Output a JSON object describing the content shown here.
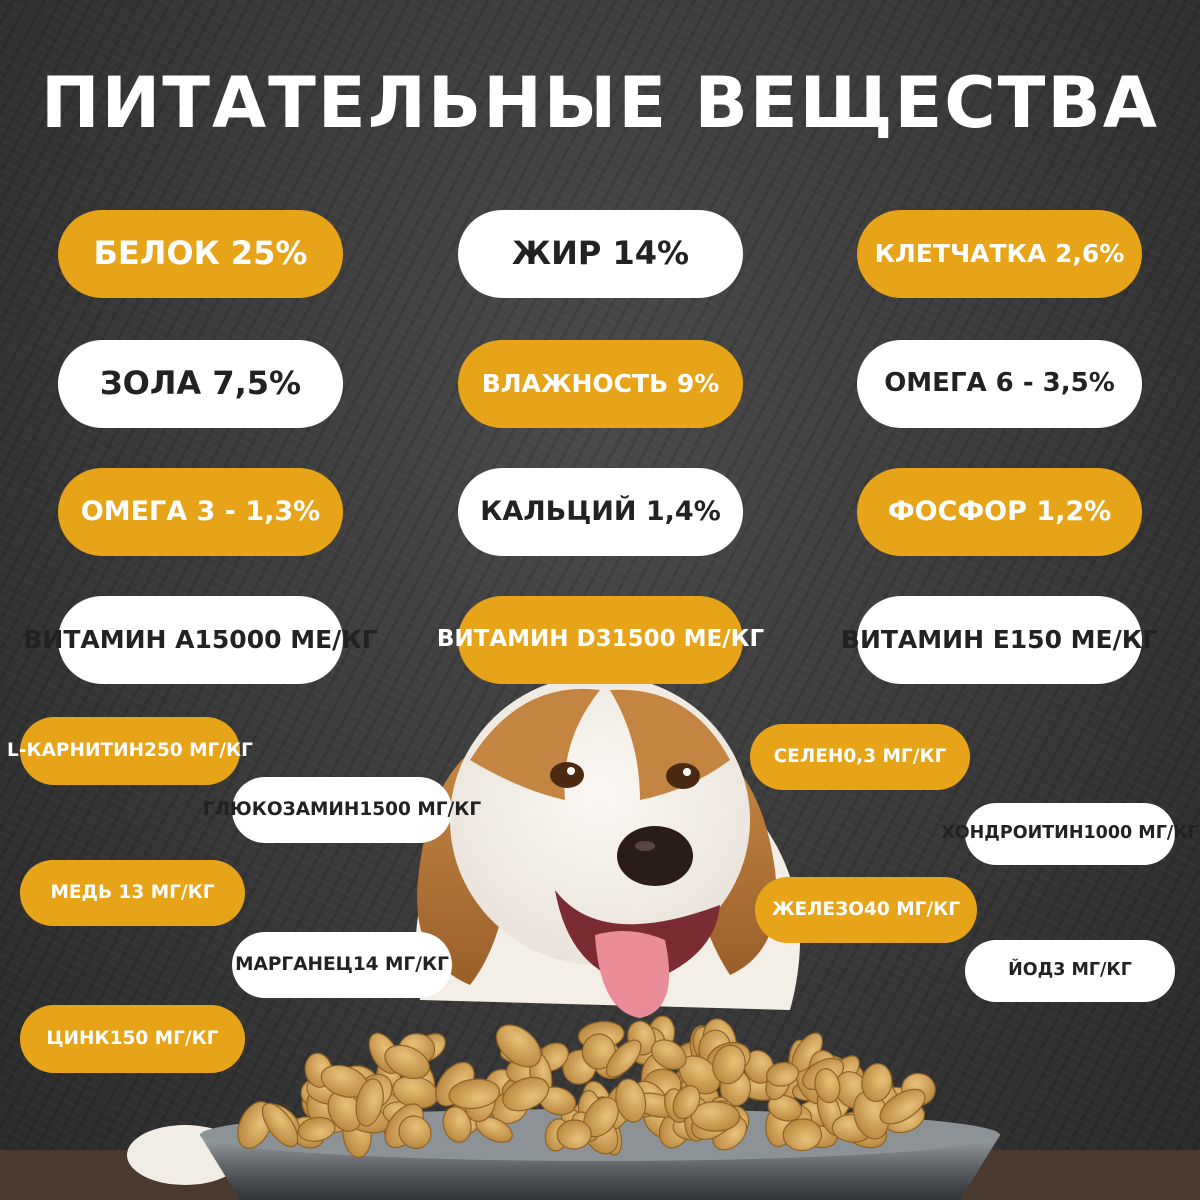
{
  "colors": {
    "accent": "#E8A418",
    "pill_white": "#FFFFFF",
    "background": "#383838"
  },
  "title": "ПИТАТЕЛЬНЫЕ ВЕЩЕСТВА",
  "nutrients": [
    {
      "id": "protein",
      "lines": [
        "БЕЛОК 25%"
      ],
      "style": "orange"
    },
    {
      "id": "fat",
      "lines": [
        "ЖИР 14%"
      ],
      "style": "white"
    },
    {
      "id": "fiber",
      "lines": [
        "КЛЕТЧАТКА 2,6%"
      ],
      "style": "orange"
    },
    {
      "id": "ash",
      "lines": [
        "ЗОЛА 7,5%"
      ],
      "style": "white"
    },
    {
      "id": "moisture",
      "lines": [
        "ВЛАЖНОСТЬ 9%"
      ],
      "style": "orange"
    },
    {
      "id": "omega6",
      "lines": [
        "ОМЕГА 6 - 3,5%"
      ],
      "style": "white"
    },
    {
      "id": "omega3",
      "lines": [
        "ОМЕГА 3 - 1,3%"
      ],
      "style": "orange"
    },
    {
      "id": "calcium",
      "lines": [
        "КАЛЬЦИЙ 1,4%"
      ],
      "style": "white"
    },
    {
      "id": "phosphorus",
      "lines": [
        "ФОСФОР 1,2%"
      ],
      "style": "orange"
    },
    {
      "id": "vitamin-a",
      "lines": [
        "ВИТАМИН А",
        "15000 МЕ/КГ"
      ],
      "style": "white"
    },
    {
      "id": "vitamin-d3",
      "lines": [
        "ВИТАМИН D3",
        "1500 МЕ/КГ"
      ],
      "style": "orange"
    },
    {
      "id": "vitamin-e",
      "lines": [
        "ВИТАМИН Е",
        "150 МЕ/КГ"
      ],
      "style": "white"
    },
    {
      "id": "l-carnitine",
      "lines": [
        "L-КАРНИТИН",
        "250 МГ/КГ"
      ],
      "style": "orange"
    },
    {
      "id": "glucosamine",
      "lines": [
        "ГЛЮКОЗАМИН",
        "1500 МГ/КГ"
      ],
      "style": "white"
    },
    {
      "id": "selenium",
      "lines": [
        "СЕЛЕН",
        "0,3 МГ/КГ"
      ],
      "style": "orange"
    },
    {
      "id": "chondroitin",
      "lines": [
        "ХОНДРОИТИН",
        "1000 МГ/КГ"
      ],
      "style": "white"
    },
    {
      "id": "copper",
      "lines": [
        "МЕДЬ 13 МГ/КГ"
      ],
      "style": "orange"
    },
    {
      "id": "iron",
      "lines": [
        "ЖЕЛЕЗО",
        "40 МГ/КГ"
      ],
      "style": "orange"
    },
    {
      "id": "manganese",
      "lines": [
        "МАРГАНЕЦ",
        "14 МГ/КГ"
      ],
      "style": "white"
    },
    {
      "id": "iodine",
      "lines": [
        "ЙОД",
        "3 МГ/КГ"
      ],
      "style": "white"
    },
    {
      "id": "zinc",
      "lines": [
        "ЦИНК",
        "150 МГ/КГ"
      ],
      "style": "orange"
    }
  ]
}
